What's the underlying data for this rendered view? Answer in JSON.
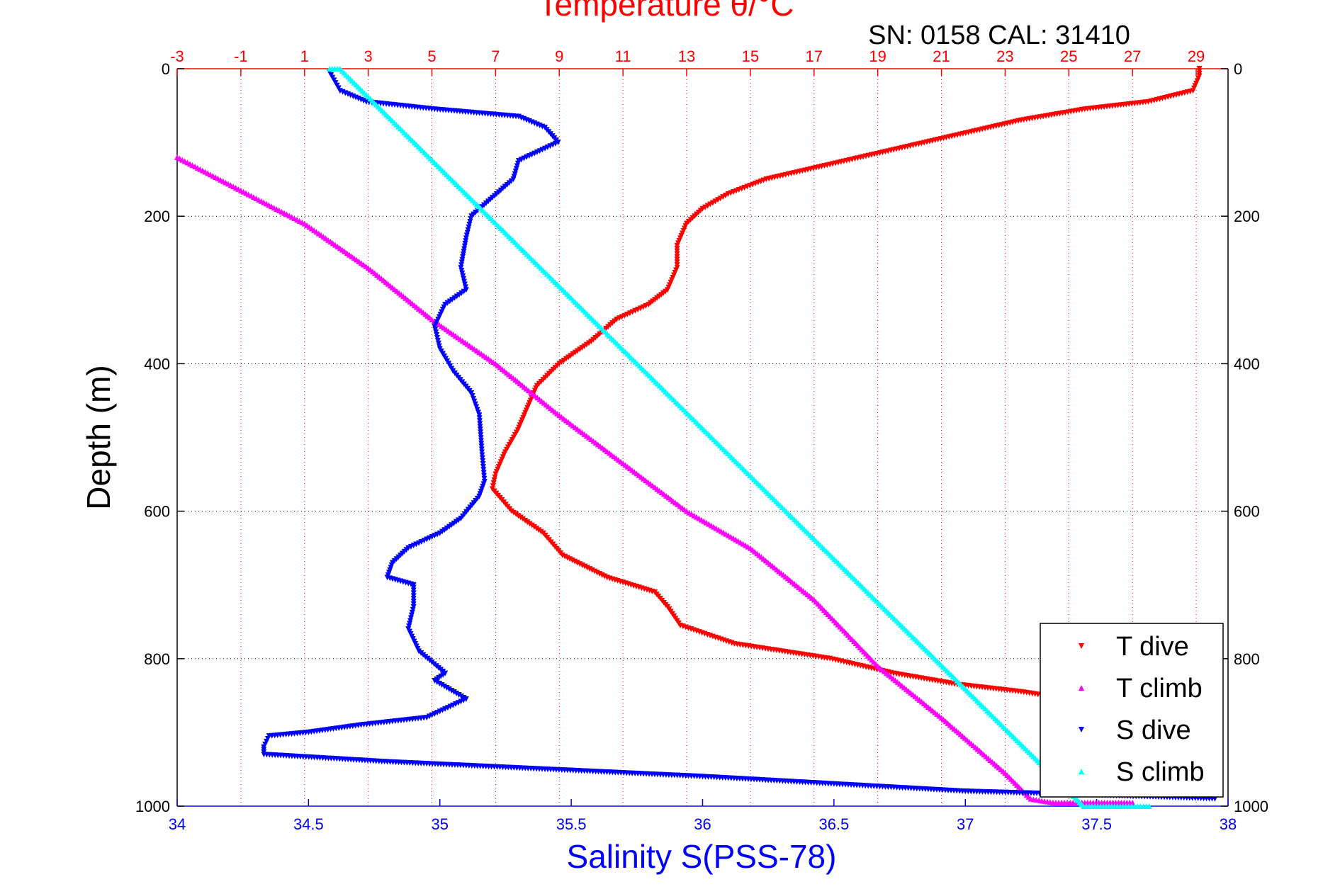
{
  "chart_data": {
    "type": "scatter",
    "title": "Temperature θ/°C",
    "subtitle": "SN: 0158  CAL: 31410",
    "ylabel": "Depth (m)",
    "xlabel_bottom": "Salinity S(PSS-78)",
    "xlabel_top": "Temperature θ/°C",
    "ylim": [
      1000,
      0
    ],
    "y_ticks": [
      0,
      200,
      400,
      600,
      800,
      1000
    ],
    "x_bottom_lim": [
      34,
      38
    ],
    "x_bottom_ticks": [
      34,
      34.5,
      35,
      35.5,
      36,
      36.5,
      37,
      37.5,
      38
    ],
    "x_top_lim": [
      -3,
      30
    ],
    "x_top_ticks": [
      -3,
      -1,
      1,
      3,
      5,
      7,
      9,
      11,
      13,
      15,
      17,
      19,
      21,
      23,
      25,
      27,
      29
    ],
    "grid": true,
    "legend_position": "bottom-right",
    "colors": {
      "temperature_axis": "#ff0000",
      "salinity_axis": "#0000ff",
      "t_dive": "#ff0000",
      "t_climb": "#ff00ff",
      "s_dive": "#0000ff",
      "s_climb": "#00ffff"
    },
    "series": [
      {
        "name": "T dive",
        "axis": "temperature",
        "marker": "triangle-down",
        "points": [
          [
            29.1,
            0
          ],
          [
            29.1,
            10
          ],
          [
            28.9,
            30
          ],
          [
            27.5,
            45
          ],
          [
            25.5,
            55
          ],
          [
            23.5,
            70
          ],
          [
            21.5,
            90
          ],
          [
            19.5,
            110
          ],
          [
            17.5,
            130
          ],
          [
            15.5,
            150
          ],
          [
            14.3,
            170
          ],
          [
            13.5,
            190
          ],
          [
            13.0,
            210
          ],
          [
            12.7,
            240
          ],
          [
            12.7,
            270
          ],
          [
            12.4,
            300
          ],
          [
            11.8,
            320
          ],
          [
            10.8,
            340
          ],
          [
            10.0,
            370
          ],
          [
            9.0,
            400
          ],
          [
            8.3,
            430
          ],
          [
            8.0,
            460
          ],
          [
            7.7,
            490
          ],
          [
            7.3,
            520
          ],
          [
            7.0,
            550
          ],
          [
            6.9,
            570
          ],
          [
            7.5,
            600
          ],
          [
            8.5,
            630
          ],
          [
            9.1,
            660
          ],
          [
            10.5,
            690
          ],
          [
            12.0,
            710
          ],
          [
            12.4,
            730
          ],
          [
            12.8,
            755
          ],
          [
            14.5,
            780
          ],
          [
            17.5,
            800
          ],
          [
            19.5,
            820
          ],
          [
            21.5,
            835
          ],
          [
            23.5,
            845
          ],
          [
            25.0,
            855
          ],
          [
            26.0,
            860
          ]
        ]
      },
      {
        "name": "T climb",
        "axis": "temperature",
        "marker": "triangle-up",
        "points": [
          [
            -3.0,
            120
          ],
          [
            -1.0,
            165
          ],
          [
            1.0,
            210
          ],
          [
            3.0,
            270
          ],
          [
            5.0,
            340
          ],
          [
            7.0,
            400
          ],
          [
            9.0,
            470
          ],
          [
            11.0,
            535
          ],
          [
            13.0,
            600
          ],
          [
            15.0,
            650
          ],
          [
            17.0,
            720
          ],
          [
            19.0,
            810
          ],
          [
            21.0,
            880
          ],
          [
            23.0,
            955
          ],
          [
            23.8,
            990
          ],
          [
            24.5,
            995
          ],
          [
            25.5,
            995
          ],
          [
            27.0,
            995
          ]
        ]
      },
      {
        "name": "S dive",
        "axis": "salinity",
        "marker": "triangle-down",
        "points": [
          [
            34.58,
            5
          ],
          [
            34.62,
            30
          ],
          [
            34.72,
            45
          ],
          [
            34.98,
            55
          ],
          [
            35.3,
            65
          ],
          [
            35.4,
            80
          ],
          [
            35.45,
            100
          ],
          [
            35.3,
            125
          ],
          [
            35.28,
            150
          ],
          [
            35.2,
            175
          ],
          [
            35.12,
            200
          ],
          [
            35.1,
            230
          ],
          [
            35.08,
            270
          ],
          [
            35.1,
            300
          ],
          [
            35.02,
            320
          ],
          [
            34.98,
            350
          ],
          [
            35.0,
            380
          ],
          [
            35.05,
            410
          ],
          [
            35.12,
            440
          ],
          [
            35.15,
            470
          ],
          [
            35.16,
            520
          ],
          [
            35.17,
            560
          ],
          [
            35.15,
            580
          ],
          [
            35.08,
            610
          ],
          [
            35.0,
            630
          ],
          [
            34.88,
            650
          ],
          [
            34.82,
            670
          ],
          [
            34.8,
            690
          ],
          [
            34.9,
            700
          ],
          [
            34.9,
            730
          ],
          [
            34.88,
            760
          ],
          [
            34.92,
            790
          ],
          [
            35.02,
            820
          ],
          [
            34.98,
            830
          ],
          [
            35.1,
            855
          ],
          [
            34.95,
            880
          ],
          [
            34.7,
            890
          ],
          [
            34.5,
            900
          ],
          [
            34.35,
            905
          ],
          [
            34.33,
            920
          ],
          [
            34.33,
            930
          ],
          [
            34.8,
            940
          ],
          [
            35.4,
            950
          ],
          [
            36.0,
            960
          ],
          [
            36.5,
            970
          ],
          [
            37.0,
            980
          ],
          [
            37.5,
            985
          ],
          [
            37.95,
            990
          ]
        ]
      },
      {
        "name": "S climb",
        "axis": "salinity",
        "marker": "triangle-up",
        "points": [
          [
            34.58,
            0
          ],
          [
            34.6,
            0
          ],
          [
            34.62,
            0
          ],
          [
            37.45,
            1000
          ],
          [
            37.6,
            1000
          ],
          [
            37.7,
            1000
          ]
        ]
      }
    ]
  }
}
